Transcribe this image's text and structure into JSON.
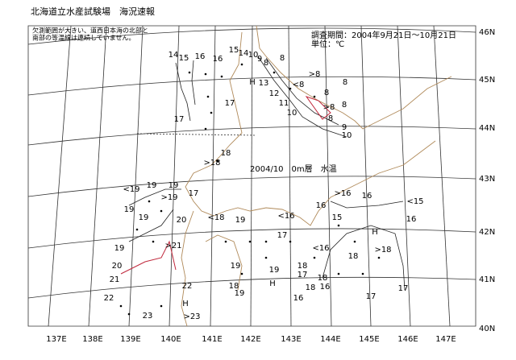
{
  "header": {
    "title": "北海道立水産試験場　海況速報",
    "note": [
      "欠測範囲が大きい、道西日本海の北部と",
      "南部の等温線は連続していません。"
    ],
    "period": "調査期間：2004年9月21日〜10月21日",
    "unit": "単位：℃",
    "map_label": "2004/10　0m層　水温"
  },
  "lon_labels": [
    "137E",
    "138E",
    "139E",
    "140E",
    "141E",
    "142E",
    "143E",
    "144E",
    "145E",
    "146E",
    "147E"
  ],
  "lat_labels": [
    "46N",
    "45N",
    "44N",
    "43N",
    "42N",
    "41N",
    "40N"
  ],
  "contour_labels": [
    "14",
    "15",
    "16",
    "16",
    "15",
    "14",
    "10",
    "9",
    "8",
    "8",
    "H",
    "13",
    "12",
    "11",
    "10",
    ">8",
    "8",
    "<8",
    "8",
    ">8",
    "8",
    "8",
    "9",
    "10",
    "17",
    "17",
    "18",
    ">18",
    "<19",
    "19",
    "19",
    ">19",
    "17",
    "19",
    "19",
    "20",
    "<18",
    "19",
    "<16",
    ">16",
    "16",
    "16",
    "15",
    "<15",
    "16",
    "H",
    "17",
    ">21",
    "19",
    "<16",
    ">18",
    "18",
    "20",
    "19",
    "19",
    "18",
    "17",
    "16",
    "21",
    "18",
    "H",
    "18",
    "16",
    "18",
    "17",
    "22",
    "22",
    "17",
    "H",
    ">23",
    "23",
    "19"
  ]
}
